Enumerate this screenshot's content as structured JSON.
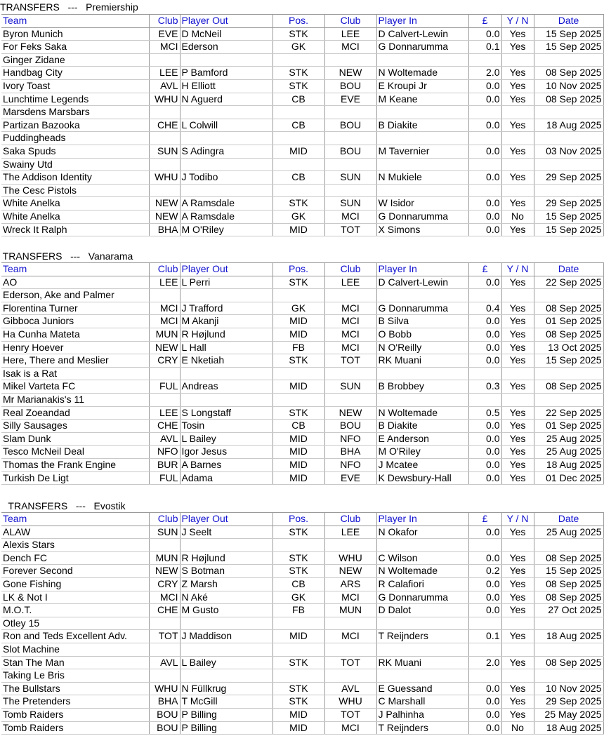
{
  "headers": {
    "team": "Team",
    "club_out": "Club",
    "player_out": "Player Out",
    "pos": "Pos.",
    "club_in": "Club",
    "player_in": "Player In",
    "cost": "£",
    "yn": "Y / N",
    "date": "Date"
  },
  "sections": [
    {
      "title": "TRANSFERS   ---   Premiership",
      "rows": [
        [
          "Byron Munich",
          "EVE",
          "D McNeil",
          "STK",
          "LEE",
          "D Calvert-Lewin",
          "0.0",
          "Yes",
          "15 Sep 2025"
        ],
        [
          "For Feks Saka",
          "MCI",
          "Ederson",
          "GK",
          "MCI",
          "G Donnarumma",
          "0.1",
          "Yes",
          "15 Sep 2025"
        ],
        [
          "Ginger Zidane",
          "",
          "",
          "",
          "",
          "",
          "",
          "",
          ""
        ],
        [
          "Handbag City",
          "LEE",
          "P Bamford",
          "STK",
          "NEW",
          "N Woltemade",
          "2.0",
          "Yes",
          "08 Sep 2025"
        ],
        [
          "Ivory Toast",
          "AVL",
          "H Elliott",
          "STK",
          "BOU",
          "E Kroupi Jr",
          "0.0",
          "Yes",
          "10 Nov 2025"
        ],
        [
          "Lunchtime Legends",
          "WHU",
          "N Aguerd",
          "CB",
          "EVE",
          "M Keane",
          "0.0",
          "Yes",
          "08 Sep 2025"
        ],
        [
          "Marsdens Marsbars",
          "",
          "",
          "",
          "",
          "",
          "",
          "",
          ""
        ],
        [
          "Partizan Bazooka",
          "CHE",
          "L Colwill",
          "CB",
          "BOU",
          "B Diakite",
          "0.0",
          "Yes",
          "18 Aug 2025"
        ],
        [
          "Puddingheads",
          "",
          "",
          "",
          "",
          "",
          "",
          "",
          ""
        ],
        [
          "Saka Spuds",
          "SUN",
          "S Adingra",
          "MID",
          "BOU",
          "M Tavernier",
          "0.0",
          "Yes",
          "03 Nov 2025"
        ],
        [
          "Swainy Utd",
          "",
          "",
          "",
          "",
          "",
          "",
          "",
          ""
        ],
        [
          "The Addison Identity",
          "WHU",
          "J Todibo",
          "CB",
          "SUN",
          "N Mukiele",
          "0.0",
          "Yes",
          "29 Sep 2025"
        ],
        [
          "The Cesc Pistols",
          "",
          "",
          "",
          "",
          "",
          "",
          "",
          ""
        ],
        [
          "White Anelka",
          "NEW",
          "A Ramsdale",
          "STK",
          "SUN",
          "W Isidor",
          "0.0",
          "Yes",
          "29 Sep 2025"
        ],
        [
          "White Anelka",
          "NEW",
          "A Ramsdale",
          "GK",
          "MCI",
          "G Donnarumma",
          "0.0",
          "No",
          "15 Sep 2025"
        ],
        [
          "Wreck It Ralph",
          "BHA",
          "M O'Riley",
          "MID",
          "TOT",
          "X Simons",
          "0.0",
          "Yes",
          "15 Sep 2025"
        ]
      ]
    },
    {
      "title": " TRANSFERS   ---   Vanarama",
      "rows": [
        [
          "AO",
          "LEE",
          "L Perri",
          "STK",
          "LEE",
          "D Calvert-Lewin",
          "0.0",
          "Yes",
          "22 Sep 2025"
        ],
        [
          "Ederson, Ake and Palmer",
          "",
          "",
          "",
          "",
          "",
          "",
          "",
          ""
        ],
        [
          "Florentina Turner",
          "MCI",
          "J Trafford",
          "GK",
          "MCI",
          "G Donnarumma",
          "0.4",
          "Yes",
          "08 Sep 2025"
        ],
        [
          "Gibboca Juniors",
          "MCI",
          "M Akanji",
          "MID",
          "MCI",
          "B Silva",
          "0.0",
          "Yes",
          "01 Sep 2025"
        ],
        [
          "Ha Cunha Mateta",
          "MUN",
          "R Højlund",
          "MID",
          "MCI",
          "O Bobb",
          "0.0",
          "Yes",
          "08 Sep 2025"
        ],
        [
          "Henry Hoever",
          "NEW",
          "L Hall",
          "FB",
          "MCI",
          "N O'Reilly",
          "0.0",
          "Yes",
          "13 Oct 2025"
        ],
        [
          "Here, There and Meslier",
          "CRY",
          "E Nketiah",
          "STK",
          "TOT",
          "RK Muani",
          "0.0",
          "Yes",
          "15 Sep 2025"
        ],
        [
          "Isak is a Rat",
          "",
          "",
          "",
          "",
          "",
          "",
          "",
          ""
        ],
        [
          "Mikel Varteta FC",
          "FUL",
          "Andreas",
          "MID",
          "SUN",
          "B Brobbey",
          "0.3",
          "Yes",
          "08 Sep 2025"
        ],
        [
          "Mr Marianakis's 11",
          "",
          "",
          "",
          "",
          "",
          "",
          "",
          ""
        ],
        [
          "Real Zoeandad",
          "LEE",
          "S Longstaff",
          "STK",
          "NEW",
          "N Woltemade",
          "0.5",
          "Yes",
          "22 Sep 2025"
        ],
        [
          "Silly Sausages",
          "CHE",
          "Tosin",
          "CB",
          "BOU",
          "B Diakite",
          "0.0",
          "Yes",
          "01 Sep 2025"
        ],
        [
          "Slam Dunk",
          "AVL",
          "L Bailey",
          "MID",
          "NFO",
          "E Anderson",
          "0.0",
          "Yes",
          "25 Aug 2025"
        ],
        [
          "Tesco McNeil Deal",
          "NFO",
          "Igor Jesus",
          "MID",
          "BHA",
          "M O'Riley",
          "0.0",
          "Yes",
          "25 Aug 2025"
        ],
        [
          "Thomas the Frank Engine",
          "BUR",
          "A Barnes",
          "MID",
          "NFO",
          "J Mcatee",
          "0.0",
          "Yes",
          "18 Aug 2025"
        ],
        [
          "Turkish De Ligt",
          "FUL",
          "Adama",
          "MID",
          "EVE",
          "K Dewsbury-Hall",
          "0.0",
          "Yes",
          "01 Dec 2025"
        ]
      ]
    },
    {
      "title": "   TRANSFERS   ---   Evostik",
      "rows": [
        [
          "ALAW",
          "SUN",
          "J Seelt",
          "STK",
          "LEE",
          "N Okafor",
          "0.0",
          "Yes",
          "25 Aug 2025"
        ],
        [
          "Alexis Stars",
          "",
          "",
          "",
          "",
          "",
          "",
          "",
          ""
        ],
        [
          "Dench FC",
          "MUN",
          "R Højlund",
          "STK",
          "WHU",
          "C Wilson",
          "0.0",
          "Yes",
          "08 Sep 2025"
        ],
        [
          "Forever Second",
          "NEW",
          "S Botman",
          "STK",
          "NEW",
          "N Woltemade",
          "0.2",
          "Yes",
          "15 Sep 2025"
        ],
        [
          "Gone Fishing",
          "CRY",
          "Z Marsh",
          "CB",
          "ARS",
          "R Calafiori",
          "0.0",
          "Yes",
          "08 Sep 2025"
        ],
        [
          "LK & Not I",
          "MCI",
          "N Aké",
          "GK",
          "MCI",
          "G Donnarumma",
          "0.0",
          "Yes",
          "08 Sep 2025"
        ],
        [
          "M.O.T.",
          "CHE",
          "M Gusto",
          "FB",
          "MUN",
          "D Dalot",
          "0.0",
          "Yes",
          "27 Oct 2025"
        ],
        [
          "Otley 15",
          "",
          "",
          "",
          "",
          "",
          "",
          "",
          ""
        ],
        [
          "Ron and Teds Excellent Adv.",
          "TOT",
          "J Maddison",
          "MID",
          "MCI",
          "T Reijnders",
          "0.1",
          "Yes",
          "18 Aug 2025"
        ],
        [
          "Slot Machine",
          "",
          "",
          "",
          "",
          "",
          "",
          "",
          ""
        ],
        [
          "Stan The Man",
          "AVL",
          "L Bailey",
          "STK",
          "TOT",
          "RK Muani",
          "2.0",
          "Yes",
          "08 Sep 2025"
        ],
        [
          "Taking Le Bris",
          "",
          "",
          "",
          "",
          "",
          "",
          "",
          ""
        ],
        [
          "The Bullstars",
          "WHU",
          "N Füllkrug",
          "STK",
          "AVL",
          "E Guessand",
          "0.0",
          "Yes",
          "10 Nov 2025"
        ],
        [
          "The Pretenders",
          "BHA",
          "T McGill",
          "STK",
          "WHU",
          "C Marshall",
          "0.0",
          "Yes",
          "29 Sep 2025"
        ],
        [
          "Tomb Raiders",
          "BOU",
          "P Billing",
          "MID",
          "TOT",
          "J Palhinha",
          "0.0",
          "Yes",
          "25 May 2025"
        ],
        [
          "Tomb Raiders",
          "BOU",
          "P Billing",
          "MID",
          "MCI",
          "T Reijnders",
          "0.0",
          "No",
          "18 Aug 2025"
        ]
      ]
    }
  ],
  "colors": {
    "header_text": "#1010d0",
    "grid_line": "#999999"
  }
}
